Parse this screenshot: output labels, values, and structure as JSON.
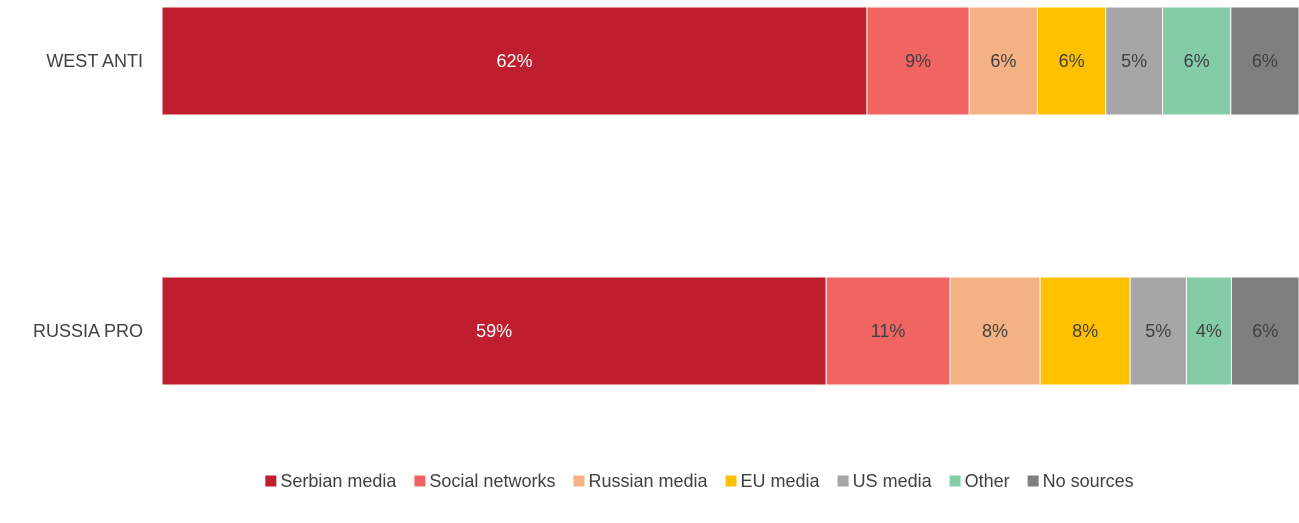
{
  "chart_data": {
    "type": "bar",
    "orientation": "horizontal",
    "stacked": true,
    "categories": [
      "WEST ANTI",
      "RUSSIA PRO"
    ],
    "series": [
      {
        "name": "Serbian media",
        "color": "#be1e2d",
        "values": [
          62,
          59
        ]
      },
      {
        "name": "Social networks",
        "color": "#f06461",
        "values": [
          9,
          11
        ]
      },
      {
        "name": "Russian media",
        "color": "#f4b183",
        "values": [
          6,
          8
        ]
      },
      {
        "name": "EU media",
        "color": "#ffc000",
        "values": [
          6,
          8
        ]
      },
      {
        "name": "US media",
        "color": "#a6a6a6",
        "values": [
          5,
          5
        ]
      },
      {
        "name": "Other",
        "color": "#84cba8",
        "values": [
          6,
          4
        ]
      },
      {
        "name": "No sources",
        "color": "#7f7f7f",
        "values": [
          6,
          6
        ]
      }
    ],
    "data_labels": [
      [
        "62%",
        "9%",
        "6%",
        "6%",
        "5%",
        "6%",
        "6%"
      ],
      [
        "59%",
        "11%",
        "8%",
        "8%",
        "5%",
        "4%",
        "6%"
      ]
    ],
    "label_colors": {
      "on_dark": "#ffffff",
      "on_light": "#404040"
    },
    "xlim": [
      0,
      100
    ],
    "grid": false,
    "legend_position": "bottom",
    "title": "",
    "xlabel": "",
    "ylabel": ""
  }
}
